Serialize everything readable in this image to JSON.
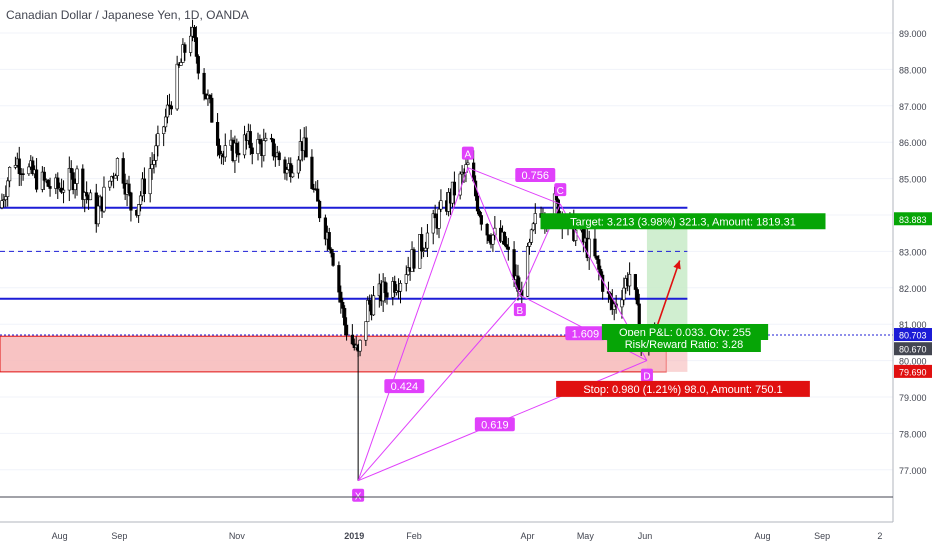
{
  "header": {
    "title": "Canadian Dollar / Japanese Yen, 1D, OANDA"
  },
  "colors": {
    "up": "#ffffff",
    "down": "#000000",
    "outline": "#000000",
    "blue": "#1c1cd6",
    "magenta": "#e040fb",
    "green": "#06a506",
    "red": "#e01010",
    "zone": "#f7b9b9",
    "target_zone": "#c8ebc8",
    "grid": "#f0f3fa"
  },
  "chart_data": {
    "type": "candlestick",
    "title": "Canadian Dollar / Japanese Yen, 1D, OANDA",
    "ylim": [
      76.0,
      89.5
    ],
    "x_ticks": [
      "Aug",
      "Sep",
      "Nov",
      "2019",
      "Feb",
      "Apr",
      "May",
      "Jun",
      "Aug",
      "Sep",
      "2"
    ],
    "y_ticks": [
      "89.000",
      "88.000",
      "87.000",
      "86.000",
      "85.000",
      "84.000",
      "83.000",
      "82.000",
      "81.000",
      "80.000",
      "79.000",
      "78.000",
      "77.000"
    ],
    "price_path": [
      [
        "2018-07-01",
        84.2
      ],
      [
        "2018-07-08",
        85.6
      ],
      [
        "2018-07-20",
        85.0
      ],
      [
        "2018-07-30",
        84.7
      ],
      [
        "2018-08-10",
        85.1
      ],
      [
        "2018-08-20",
        84.0
      ],
      [
        "2018-09-01",
        85.6
      ],
      [
        "2018-09-08",
        84.0
      ],
      [
        "2018-09-20",
        85.7
      ],
      [
        "2018-10-01",
        87.8
      ],
      [
        "2018-10-08",
        89.1
      ],
      [
        "2018-10-15",
        87.5
      ],
      [
        "2018-10-25",
        85.6
      ],
      [
        "2018-11-05",
        86.0
      ],
      [
        "2018-11-20",
        85.8
      ],
      [
        "2018-11-27",
        85.2
      ],
      [
        "2018-12-05",
        86.0
      ],
      [
        "2018-12-12",
        84.4
      ],
      [
        "2018-12-20",
        83.2
      ],
      [
        "2018-12-27",
        81.0
      ],
      [
        "2019-01-03",
        80.1
      ],
      [
        "2019-01-08",
        81.5
      ],
      [
        "2019-01-25",
        82.3
      ],
      [
        "2019-02-05",
        83.2
      ],
      [
        "2019-02-20",
        84.5
      ],
      [
        "2019-03-01",
        85.3
      ],
      [
        "2019-03-10",
        83.6
      ],
      [
        "2019-03-20",
        83.2
      ],
      [
        "2019-03-28",
        81.8
      ],
      [
        "2019-04-05",
        83.8
      ],
      [
        "2019-04-15",
        84.3
      ],
      [
        "2019-04-25",
        83.6
      ],
      [
        "2019-05-05",
        82.9
      ],
      [
        "2019-05-15",
        81.4
      ],
      [
        "2019-05-25",
        82.5
      ],
      [
        "2019-05-29",
        80.8
      ],
      [
        "2019-06-02",
        80.4
      ],
      [
        "2019-06-06",
        80.7
      ]
    ],
    "levels": [
      {
        "price": 84.2,
        "style": "solid",
        "color": "#1c1cd6"
      },
      {
        "price": 81.7,
        "style": "solid",
        "color": "#1c1cd6"
      },
      {
        "price": 83.0,
        "style": "dashed",
        "color": "#1c1cd6"
      }
    ],
    "current_price_line": 80.703,
    "demand_zone": {
      "from": "2018-07-01",
      "to": "2019-06-12",
      "low": 79.69,
      "high": 80.67
    },
    "harmonic_pattern": {
      "points": [
        {
          "label": "X",
          "date": "2019-01-03",
          "price": 76.7
        },
        {
          "label": "A",
          "date": "2019-03-01",
          "price": 85.3
        },
        {
          "label": "B",
          "date": "2019-03-28",
          "price": 81.8
        },
        {
          "label": "C",
          "date": "2019-04-18",
          "price": 84.3
        },
        {
          "label": "D",
          "date": "2019-06-02",
          "price": 80.0
        }
      ],
      "ratios": [
        {
          "value": "0.756",
          "date": "2019-04-05",
          "price": 85.1
        },
        {
          "value": "0.424",
          "date": "2019-01-27",
          "price": 79.3
        },
        {
          "value": "1.609",
          "date": "2019-05-01",
          "price": 80.75
        },
        {
          "value": "0.619",
          "date": "2019-03-15",
          "price": 78.25
        }
      ]
    },
    "long_position": {
      "from": "2019-06-02",
      "to": "2019-06-23",
      "entry": 80.67,
      "target": 83.883,
      "stop": 79.69,
      "target_label": "Target: 3.213 (3.98%) 321.3, Amount: 1819.31",
      "stop_label": "Stop: 0.980 (1.21%) 98.0, Amount: 750.1",
      "pnl_label": "Open P&L: 0.033, Qty: 255",
      "rr_label": "Risk/Reward Ratio: 3.28"
    },
    "projection_arrow": {
      "from": [
        "2019-06-06",
        80.75
      ],
      "to": [
        "2019-06-19",
        82.75
      ]
    },
    "axis_badges": [
      {
        "value": "83.883",
        "color": "#06a506"
      },
      {
        "value": "80.703",
        "color": "#1c1cd6"
      },
      {
        "value": "80.670",
        "color": "#434651"
      },
      {
        "value": "79.690",
        "color": "#e01010"
      }
    ]
  }
}
